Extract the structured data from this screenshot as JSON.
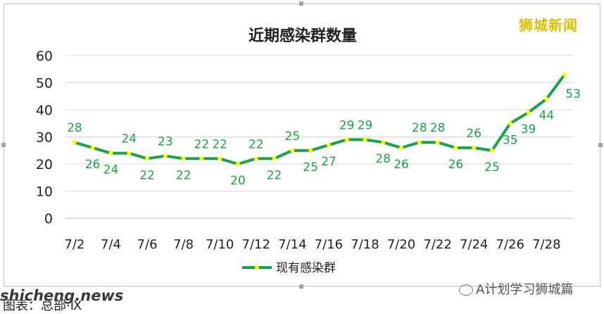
{
  "brand_tag": "狮城新闻",
  "site_watermark": "shicheng.news",
  "source_line": "图表：总部·Ⅸ",
  "account_watermark": "A计划学习狮城篇",
  "colors": {
    "line": "#1aa34a",
    "marker": "#ffff00",
    "label": "#1aa34a",
    "grid": "#d9d9d9",
    "text": "#222222"
  },
  "chart_data": {
    "type": "line",
    "title": "近期感染群数量",
    "xlabel": "",
    "ylabel": "",
    "ylim": [
      0,
      60
    ],
    "yticks": [
      0,
      10,
      20,
      30,
      40,
      50,
      60
    ],
    "grid": true,
    "legend_position": "bottom",
    "x": [
      "7/2",
      "7/3",
      "7/4",
      "7/5",
      "7/6",
      "7/7",
      "7/8",
      "7/9",
      "7/10",
      "7/11",
      "7/12",
      "7/13",
      "7/14",
      "7/15",
      "7/16",
      "7/17",
      "7/18",
      "7/19",
      "7/20",
      "7/21",
      "7/22",
      "7/23",
      "7/24",
      "7/25",
      "7/26",
      "7/27",
      "7/28",
      "7/29"
    ],
    "xtick_labels": [
      "7/2",
      "7/4",
      "7/6",
      "7/8",
      "7/10",
      "7/12",
      "7/14",
      "7/16",
      "7/18",
      "7/20",
      "7/22",
      "7/24",
      "7/26",
      "7/28"
    ],
    "series": [
      {
        "name": "现有感染群",
        "values": [
          28,
          26,
          24,
          24,
          22,
          23,
          22,
          22,
          22,
          20,
          22,
          22,
          25,
          25,
          27,
          29,
          29,
          28,
          26,
          28,
          28,
          26,
          26,
          25,
          35,
          39,
          44,
          53
        ]
      }
    ]
  }
}
